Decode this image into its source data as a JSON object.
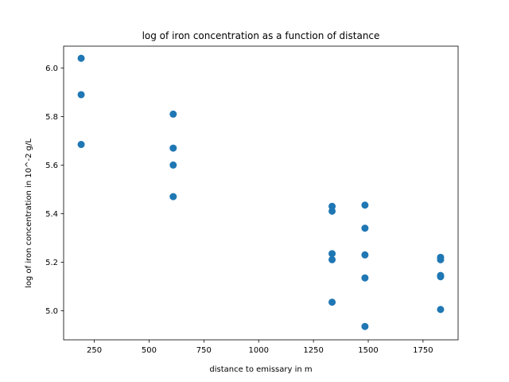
{
  "chart_data": {
    "type": "scatter",
    "title": "log of iron concentration as a function of distance",
    "xlabel": "distance to emissary in m",
    "ylabel": "log of iron concentration in 10^-2 g/L",
    "xlim": [
      110,
      1910
    ],
    "ylim": [
      4.88,
      6.09
    ],
    "xticks": [
      250,
      500,
      750,
      1000,
      1250,
      1500,
      1750
    ],
    "xtick_labels": [
      "250",
      "500",
      "750",
      "1000",
      "1250",
      "1500",
      "1750"
    ],
    "yticks": [
      5.0,
      5.2,
      5.4,
      5.6,
      5.8,
      6.0
    ],
    "ytick_labels": [
      "5.0",
      "5.2",
      "5.4",
      "5.6",
      "5.8",
      "6.0"
    ],
    "grid": false,
    "marker_color": "#1f77b4",
    "points": [
      {
        "x": 190,
        "y": 6.04
      },
      {
        "x": 190,
        "y": 5.89
      },
      {
        "x": 190,
        "y": 5.685
      },
      {
        "x": 610,
        "y": 5.81
      },
      {
        "x": 610,
        "y": 5.67
      },
      {
        "x": 610,
        "y": 5.6
      },
      {
        "x": 610,
        "y": 5.47
      },
      {
        "x": 1335,
        "y": 5.43
      },
      {
        "x": 1335,
        "y": 5.41
      },
      {
        "x": 1335,
        "y": 5.235
      },
      {
        "x": 1335,
        "y": 5.21
      },
      {
        "x": 1335,
        "y": 5.035
      },
      {
        "x": 1485,
        "y": 5.435
      },
      {
        "x": 1485,
        "y": 5.34
      },
      {
        "x": 1485,
        "y": 5.23
      },
      {
        "x": 1485,
        "y": 5.135
      },
      {
        "x": 1485,
        "y": 4.935
      },
      {
        "x": 1830,
        "y": 5.22
      },
      {
        "x": 1830,
        "y": 5.21
      },
      {
        "x": 1830,
        "y": 5.145
      },
      {
        "x": 1830,
        "y": 5.14
      },
      {
        "x": 1830,
        "y": 5.005
      }
    ]
  }
}
